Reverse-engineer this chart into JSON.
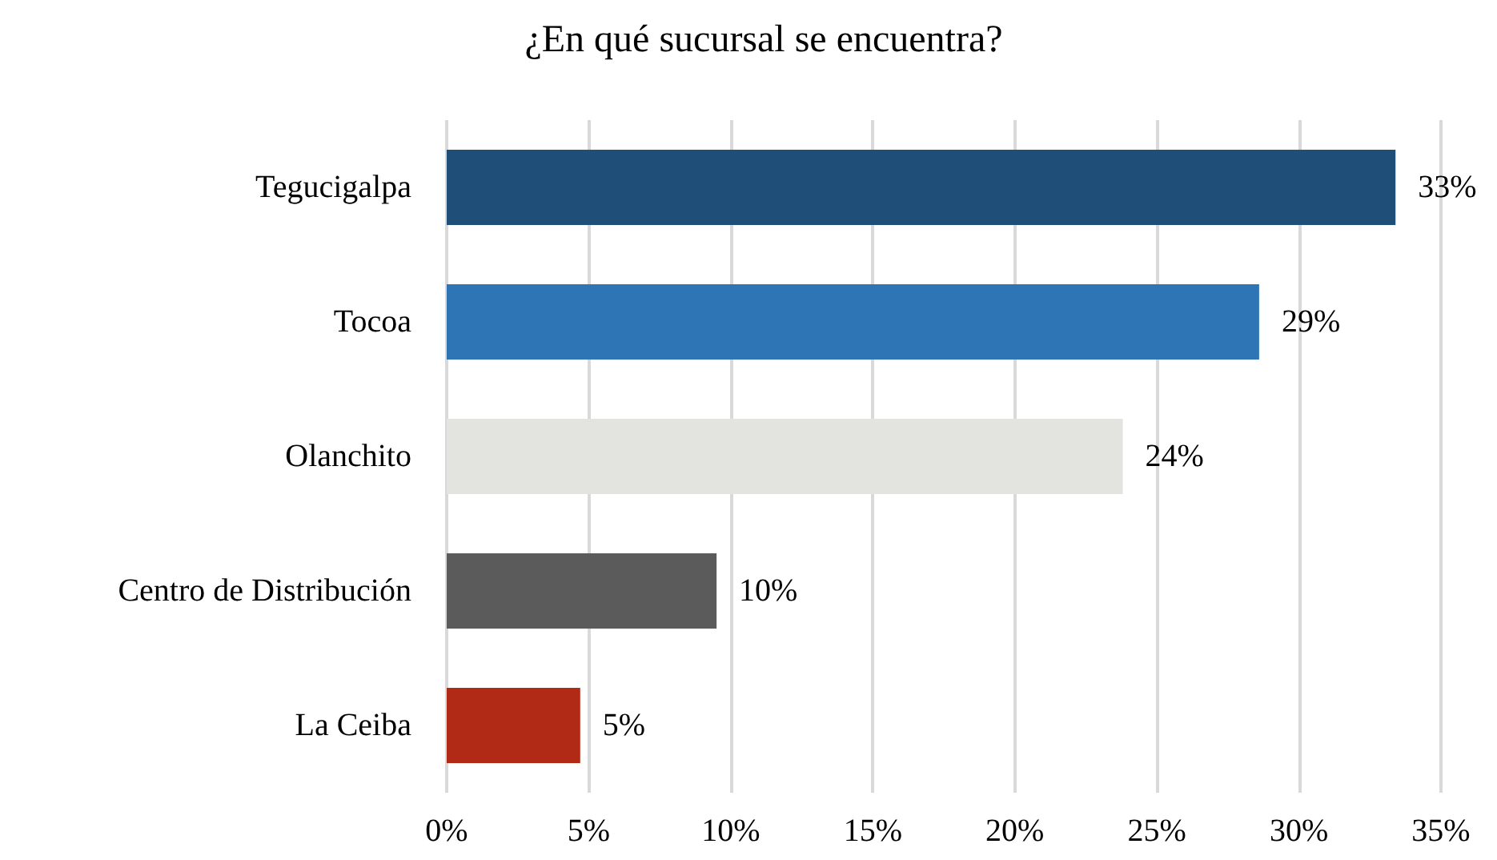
{
  "chart_data": {
    "type": "bar",
    "orientation": "horizontal",
    "title": "¿En qué sucursal se encuentra?",
    "categories": [
      "Tegucigalpa",
      "Tocoa",
      "Olanchito",
      "Centro de Distribución",
      "La Ceiba"
    ],
    "values": [
      33.4,
      28.6,
      23.8,
      9.5,
      4.7
    ],
    "value_labels": [
      "33%",
      "29%",
      "24%",
      "10%",
      "5%"
    ],
    "colors": [
      "#1f4e79",
      "#2e75b6",
      "#e3e3df",
      "#5b5b5b",
      "#b02a15"
    ],
    "xlim": [
      0,
      35
    ],
    "xticks": [
      {
        "value": 0,
        "label": "0%"
      },
      {
        "value": 5,
        "label": "5%"
      },
      {
        "value": 10,
        "label": "10%"
      },
      {
        "value": 15,
        "label": "15%"
      },
      {
        "value": 20,
        "label": "20%"
      },
      {
        "value": 25,
        "label": "25%"
      },
      {
        "value": 30,
        "label": "30%"
      },
      {
        "value": 35,
        "label": "35%"
      }
    ],
    "grid": "x"
  }
}
